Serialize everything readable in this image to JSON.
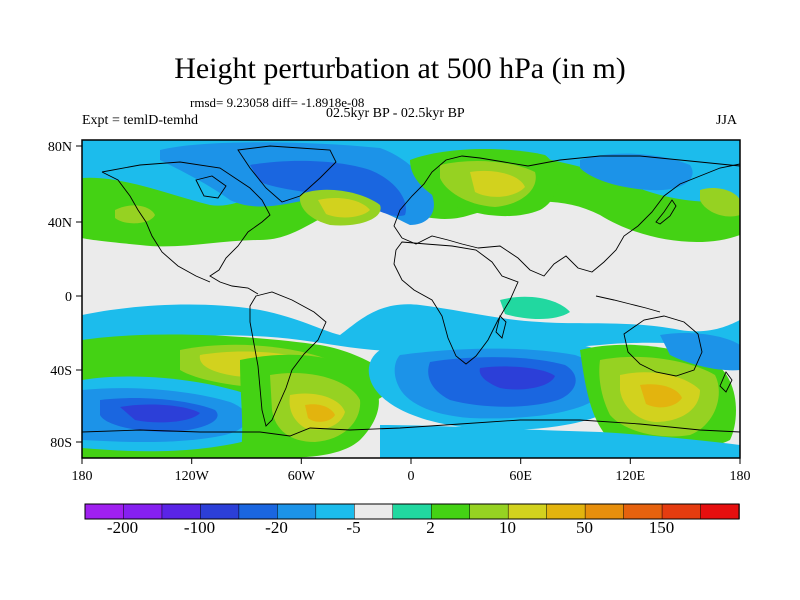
{
  "title": "Height perturbation at 500 hPa (in m)",
  "stats": "rmsd= 9.23058 diff= -1.8918e-08",
  "subtitle": "02.5kyr BP - 02.5kyr BP",
  "experiment": "Expt = temlD-temhd",
  "season": "JJA",
  "map": {
    "projection": "cylindrical equidistant",
    "lon_labels": [
      "180",
      "120W",
      "60W",
      "0",
      "60E",
      "120E",
      "180"
    ],
    "lat_labels": [
      "80N",
      "40N",
      "0",
      "40S",
      "80S"
    ],
    "ocean_color": "#ebebeb"
  },
  "colorbar": {
    "colors": [
      "#a020f0",
      "#8620f0",
      "#5a24e6",
      "#2c3fd8",
      "#1a66e0",
      "#1c93e8",
      "#1cbcec",
      "#ebebeb",
      "#21d8a0",
      "#44d214",
      "#96d222",
      "#d2d21e",
      "#e3b40e",
      "#e78f0c",
      "#e6620e",
      "#e53c10",
      "#e60f0f"
    ],
    "tick_labels": [
      "-200",
      "-100",
      "-20",
      "-5",
      "2",
      "10",
      "50",
      "150"
    ]
  }
}
